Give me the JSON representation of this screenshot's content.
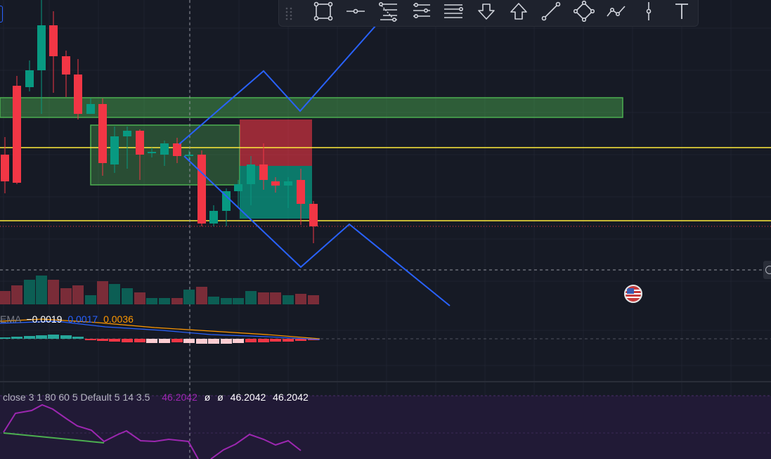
{
  "toolbar": {
    "tools": [
      "rectangle-icon",
      "horizontal-ray-icon",
      "fib-retracement-icon",
      "fib-channel-icon",
      "parallel-lines-icon",
      "arrow-down-icon",
      "arrow-up-icon",
      "trend-line-icon",
      "polyline-icon",
      "path-icon",
      "vertical-line-icon",
      "text-tool-icon"
    ]
  },
  "macd": {
    "label": "EMA",
    "histogram_value": "−0.0019",
    "macd_value": "0.0017",
    "signal_value": "0.0036",
    "colors": {
      "label": "#787b86",
      "histogram": "#ffffff",
      "macd": "#2962ff",
      "signal": "#ff9800"
    }
  },
  "rsi": {
    "params": "close 3 1 80 60 5 Default 5 14 3.5",
    "value_1": "46.2042",
    "empty_1": "ø",
    "empty_2": "ø",
    "value_2": "46.2042",
    "value_3": "46.2042",
    "colors": {
      "params": "#b2b5be",
      "value_1": "#9c27b0",
      "value": "#ffffff"
    }
  },
  "colors": {
    "background": "#161a25",
    "bull": "#089981",
    "bear": "#f23645",
    "zone_green": "#4caf50",
    "level_yellow": "#ffeb3b",
    "projection_blue": "#2962ff",
    "rsi_line": "#9c27b0",
    "divergence": "#4caf50"
  }
}
